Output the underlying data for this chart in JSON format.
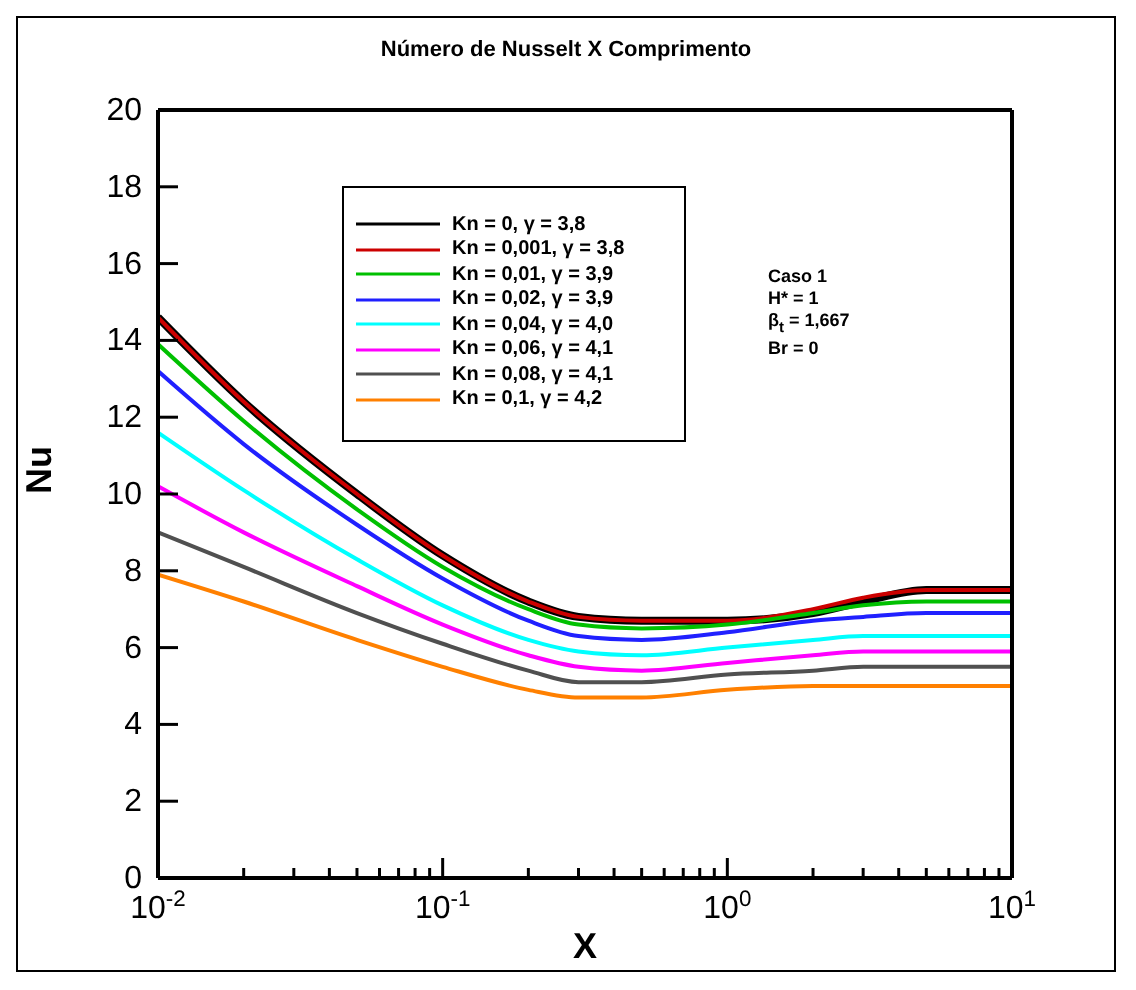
{
  "chart_data": {
    "type": "line",
    "title": "Número de Nusselt X Comprimento",
    "xlabel": "X",
    "ylabel": "Nu",
    "x": [
      0.01,
      0.02,
      0.05,
      0.1,
      0.2,
      0.3,
      0.5,
      1,
      2,
      3,
      5,
      10
    ],
    "series": [
      {
        "name": "Kn = 0, γ = 3,8",
        "color": "#000000",
        "values": [
          14.6,
          12.4,
          10.0,
          8.4,
          7.2,
          6.8,
          6.7,
          6.7,
          6.9,
          7.2,
          7.5,
          7.5
        ]
      },
      {
        "name": "Kn = 0,001, γ = 3,8",
        "color": "#cc0000",
        "values": [
          14.6,
          12.4,
          10.0,
          8.4,
          7.2,
          6.8,
          6.7,
          6.7,
          7.0,
          7.3,
          7.5,
          7.5
        ]
      },
      {
        "name": "Kn = 0,01, γ = 3,9",
        "color": "#00c000",
        "values": [
          13.9,
          11.9,
          9.6,
          8.1,
          7.0,
          6.6,
          6.5,
          6.6,
          6.9,
          7.1,
          7.2,
          7.2
        ]
      },
      {
        "name": "Kn = 0,02, γ = 3,9",
        "color": "#2020ff",
        "values": [
          13.2,
          11.3,
          9.2,
          7.8,
          6.7,
          6.3,
          6.2,
          6.4,
          6.7,
          6.8,
          6.9,
          6.9
        ]
      },
      {
        "name": "Kn = 0,04, γ = 4,0",
        "color": "#00ffff",
        "values": [
          11.6,
          10.1,
          8.3,
          7.1,
          6.2,
          5.9,
          5.8,
          6.0,
          6.2,
          6.3,
          6.3,
          6.3
        ]
      },
      {
        "name": "Kn = 0,06, γ = 4,1",
        "color": "#ff00ff",
        "values": [
          10.2,
          9.0,
          7.6,
          6.6,
          5.8,
          5.5,
          5.4,
          5.6,
          5.8,
          5.9,
          5.9,
          5.9
        ]
      },
      {
        "name": "Kn = 0,08, γ = 4,1",
        "color": "#505050",
        "values": [
          9.0,
          8.1,
          6.9,
          6.1,
          5.4,
          5.1,
          5.1,
          5.3,
          5.4,
          5.5,
          5.5,
          5.5
        ]
      },
      {
        "name": "Kn = 0,1, γ = 4,2",
        "color": "#ff8000",
        "values": [
          7.9,
          7.2,
          6.2,
          5.5,
          4.9,
          4.7,
          4.7,
          4.9,
          5.0,
          5.0,
          5.0,
          5.0
        ]
      }
    ],
    "log": "x",
    "xlim": [
      0.01,
      10
    ],
    "xticks": [
      {
        "value": 0.01,
        "label": "10$^{-2}$"
      },
      {
        "value": 0.02,
        "label": null
      },
      {
        "value": 0.03,
        "label": null
      },
      {
        "value": 0.04,
        "label": null
      },
      {
        "value": 0.05,
        "label": null
      },
      {
        "value": 0.06,
        "label": null
      },
      {
        "value": 0.07,
        "label": null
      },
      {
        "value": 0.08,
        "label": null
      },
      {
        "value": 0.09,
        "label": null
      },
      {
        "value": 0.1,
        "label": "10$^{-1}$"
      },
      {
        "value": 0.2,
        "label": null
      },
      {
        "value": 0.3,
        "label": null
      },
      {
        "value": 0.4,
        "label": null
      },
      {
        "value": 0.5,
        "label": null
      },
      {
        "value": 0.6,
        "label": null
      },
      {
        "value": 0.7,
        "label": null
      },
      {
        "value": 0.8,
        "label": null
      },
      {
        "value": 0.9,
        "label": null
      },
      {
        "value": 1,
        "label": "10$^{0}$"
      },
      {
        "value": 2,
        "label": null
      },
      {
        "value": 3,
        "label": null
      },
      {
        "value": 4,
        "label": null
      },
      {
        "value": 5,
        "label": null
      },
      {
        "value": 6,
        "label": null
      },
      {
        "value": 7,
        "label": null
      },
      {
        "value": 8,
        "label": null
      },
      {
        "value": 9,
        "label": null
      },
      {
        "value": 10,
        "label": "10$^{1}$"
      }
    ],
    "ylim": [
      0,
      20
    ],
    "yticks": [
      0,
      2,
      4,
      6,
      8,
      10,
      12,
      14,
      16,
      18,
      20
    ],
    "annotations": [
      "Caso 1",
      "H* = 1",
      "β$_{t}$ = 1,667",
      "Br = 0"
    ],
    "legend": "top left",
    "marker": "none",
    "line_style": "solid"
  }
}
